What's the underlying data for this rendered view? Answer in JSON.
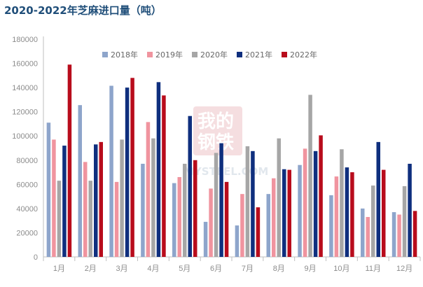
{
  "chart_data": {
    "type": "bar",
    "title": "2020-2022年芝麻进口量（吨）",
    "categories": [
      "1月",
      "2月",
      "3月",
      "4月",
      "5月",
      "6月",
      "7月",
      "8月",
      "9月",
      "10月",
      "11月",
      "12月"
    ],
    "series": [
      {
        "name": "2018年",
        "color": "#8ea5cb",
        "values": [
          111000,
          125500,
          141500,
          77000,
          61000,
          29000,
          26000,
          52000,
          76000,
          51000,
          40000,
          37000
        ]
      },
      {
        "name": "2019年",
        "color": "#f0949f",
        "values": [
          97000,
          78500,
          62000,
          111500,
          66000,
          56500,
          52000,
          65000,
          89500,
          66500,
          33000,
          35000
        ]
      },
      {
        "name": "2020年",
        "color": "#a6a6a6",
        "values": [
          63000,
          63000,
          97000,
          98000,
          77000,
          86000,
          91500,
          98000,
          134000,
          89000,
          59000,
          58500
        ]
      },
      {
        "name": "2021年",
        "color": "#0f2f7e",
        "values": [
          92000,
          93000,
          140000,
          144500,
          116500,
          94000,
          87500,
          72500,
          87500,
          74000,
          95000,
          77000
        ]
      },
      {
        "name": "2022年",
        "color": "#b80c1c",
        "values": [
          159000,
          95000,
          148000,
          133500,
          80000,
          62000,
          41000,
          72000,
          100500,
          70000,
          72000,
          38000
        ]
      }
    ],
    "yticks": [
      "0",
      "20000",
      "40000",
      "60000",
      "80000",
      "100000",
      "120000",
      "140000",
      "160000",
      "180000"
    ],
    "ylim": [
      0,
      180000
    ],
    "legend_position": "top",
    "grid": false
  }
}
